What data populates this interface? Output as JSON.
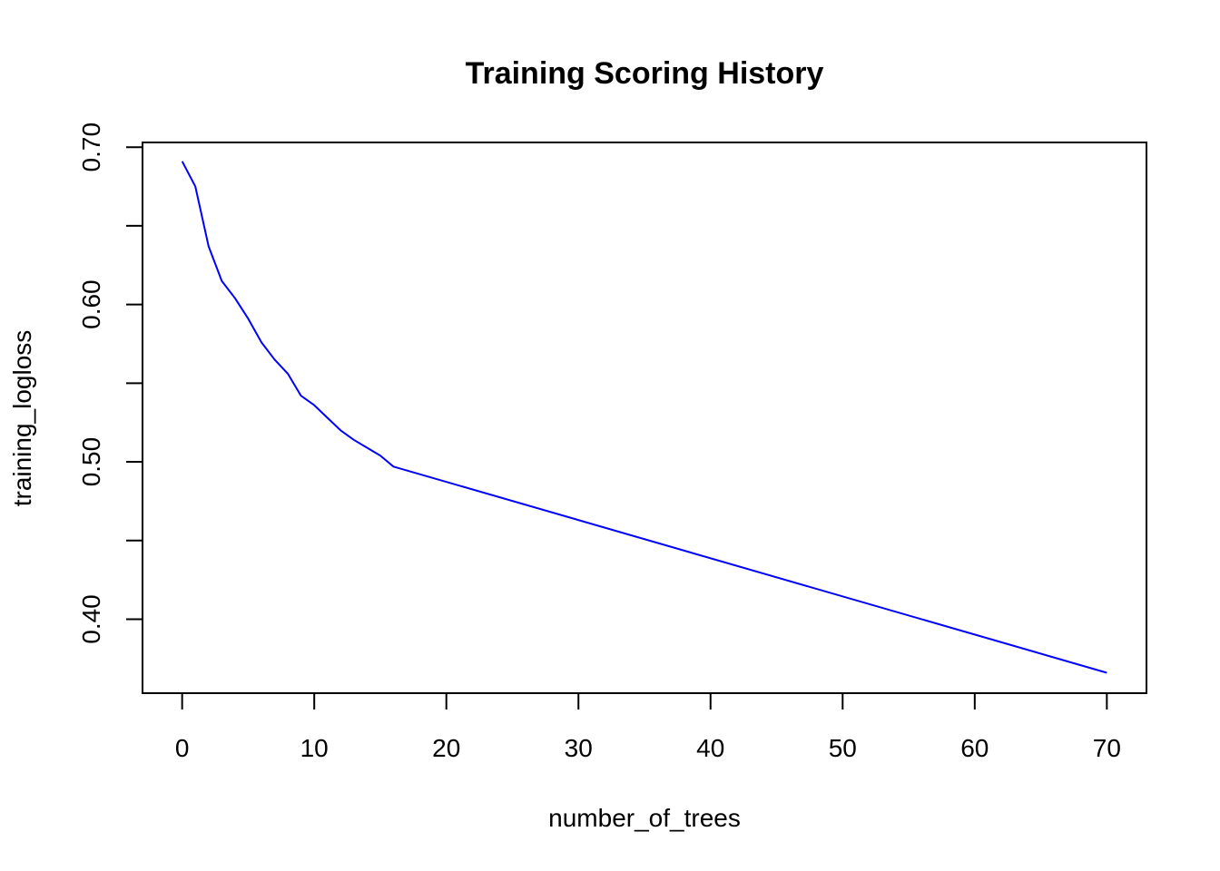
{
  "chart_data": {
    "type": "line",
    "title": "Training Scoring History",
    "xlabel": "number_of_trees",
    "ylabel": "training_logloss",
    "xlim": [
      -3,
      73
    ],
    "ylim": [
      0.353,
      0.703
    ],
    "x_ticks": [
      0,
      10,
      20,
      30,
      40,
      50,
      60,
      70
    ],
    "x_tick_labels": [
      "0",
      "10",
      "20",
      "30",
      "40",
      "50",
      "60",
      "70"
    ],
    "y_ticks": [
      0.4,
      0.45,
      0.5,
      0.55,
      0.6,
      0.65,
      0.7
    ],
    "y_tick_labels": [
      "0.40",
      "",
      "0.50",
      "",
      "0.60",
      "",
      "0.70"
    ],
    "grid": false,
    "color": "#0000ff",
    "series": [
      {
        "x": [
          0,
          1,
          2,
          3,
          4,
          5,
          6,
          7,
          8,
          9,
          10,
          11,
          12,
          13,
          14,
          15,
          16,
          70
        ],
        "y": [
          0.691,
          0.675,
          0.637,
          0.615,
          0.604,
          0.591,
          0.576,
          0.565,
          0.556,
          0.542,
          0.536,
          0.528,
          0.52,
          0.514,
          0.509,
          0.504,
          0.497,
          0.366
        ]
      }
    ]
  }
}
